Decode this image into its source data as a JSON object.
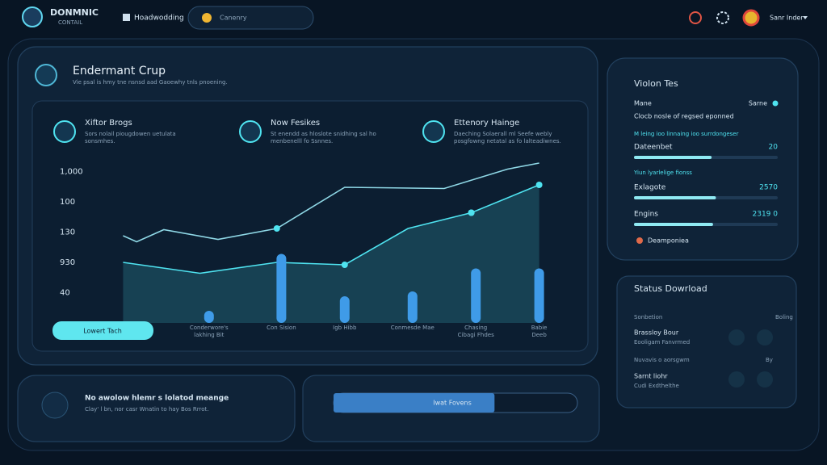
{
  "header": {
    "brand": "DONMNIC",
    "brand_sub": "CONTAIL",
    "nav": "Hoadwodding",
    "search": "Canenry",
    "user": "Sanr Inder"
  },
  "main": {
    "title": "Endermant Crup",
    "subtitle": "Vie psal is hmy tne nsnsd aad Gaoewhy tnls pnoening.",
    "features": [
      {
        "title": "Xiftor Brogs",
        "text": [
          "Sors nolail piougdowen uetulata",
          "sonsmhes."
        ]
      },
      {
        "title": "Now Fesikes",
        "text": [
          "St enendd as hloslote snidhing sal ho",
          "menbenelll fo Ssnnes."
        ]
      },
      {
        "title": "Ettenory Hainge",
        "text": [
          "Daeching Solaerall ml Seefe webly",
          "posgfowng netatal as fo lalteadiwnes."
        ]
      }
    ],
    "button": "Lowert Tach"
  },
  "chart_data": {
    "type": "line",
    "xlim": [
      0,
      100
    ],
    "ylim": [
      0,
      135
    ],
    "yticks": [
      {
        "value": 125,
        "label": "1,000"
      },
      100,
      {
        "value": 75,
        "label": "130"
      },
      {
        "value": 50,
        "label": "930"
      },
      {
        "value": 25,
        "label": "40"
      }
    ],
    "series": [
      {
        "color": "#8fd8e6",
        "x": [
          4,
          7,
          13,
          25,
          38,
          53,
          75,
          89,
          96
        ],
        "values": [
          72,
          67,
          77,
          69,
          78,
          112,
          111,
          127,
          132
        ]
      },
      {
        "color": "#4fe3f0",
        "x": [
          4,
          21,
          38,
          53,
          67,
          81,
          96
        ],
        "values": [
          50,
          41,
          50,
          48,
          78,
          91,
          114
        ]
      }
    ],
    "bars": {
      "color": "#3f9be8",
      "x": [
        23,
        39,
        53,
        68,
        82,
        96
      ],
      "values": [
        10,
        57,
        22,
        26,
        45,
        45
      ],
      "labels": [
        [
          "Conderwore's",
          "lakhing Bit"
        ],
        [
          "Con Sision"
        ],
        [
          "Igb Hibb"
        ],
        [
          "Conmesde Mae"
        ],
        [
          "Chasing",
          "Cibagi Fhdes"
        ],
        [
          "Babie",
          "Deeb"
        ]
      ]
    }
  },
  "panel_vision": {
    "title": "Violon Tes",
    "row_left": "Mane",
    "row_right": "Sarne",
    "row_text": "Clocb nosle of regsed eponned",
    "section1": "M leing ioo linnaing ioo surrdongeser",
    "items": [
      {
        "label": "Dateenbet",
        "value_text": "20",
        "progress": 54
      },
      {
        "label": "Exlagote",
        "value_text": "2570",
        "progress": 57
      },
      {
        "label": "Engins",
        "value_text": "2319 0",
        "progress": 55
      }
    ],
    "section2": "Yiun lyarlelige fionss",
    "footer": "Deamponiea"
  },
  "panel_status": {
    "title": "Status Dowrload",
    "col_left": "Sonbetion",
    "col_right": "Boling",
    "item1": [
      "Brassloy Bour",
      "Eooligam Fanvrmed"
    ],
    "mid_left": "Nuvavis o aorsgwm",
    "mid_right": "By",
    "item2": [
      "Sarnt liohr",
      "Cudi Exdthelthe"
    ]
  },
  "notice": {
    "title": "No awolow hlemr s lolatod meange",
    "text": "Clay' l bn, nor casr Wnatin to hay Bos Rrrot."
  },
  "progress_bar": {
    "label": "Iwat Fovens",
    "value": 66
  }
}
